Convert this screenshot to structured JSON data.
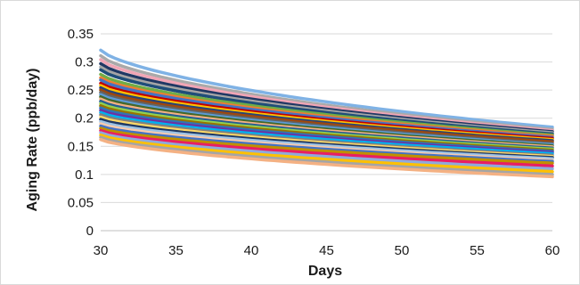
{
  "chart_data": {
    "type": "line",
    "title": "",
    "xlabel": "Days",
    "ylabel": "Aging Rate (ppb/day)",
    "xlim": [
      30,
      60
    ],
    "ylim": [
      0,
      0.35
    ],
    "x_ticks": [
      "30",
      "35",
      "40",
      "45",
      "50",
      "55",
      "60"
    ],
    "y_ticks": [
      "0",
      "0.05",
      "0.1",
      "0.15",
      "0.2",
      "0.25",
      "0.3",
      "0.35"
    ],
    "grid": "horizontal",
    "legend": "none",
    "x": [
      30,
      60
    ],
    "series": [
      {
        "color": "#7fb2e5",
        "values": [
          0.321,
          0.184
        ]
      },
      {
        "color": "#a9a9a9",
        "values": [
          0.311,
          0.18
        ]
      },
      {
        "color": "#f0a5b5",
        "values": [
          0.304,
          0.178
        ]
      },
      {
        "color": "#203864",
        "values": [
          0.297,
          0.176
        ]
      },
      {
        "color": "#a5a5a5",
        "values": [
          0.291,
          0.174
        ]
      },
      {
        "color": "#1f4e79",
        "values": [
          0.286,
          0.172
        ]
      },
      {
        "color": "#70ad47",
        "values": [
          0.278,
          0.17
        ]
      },
      {
        "color": "#ed7d31",
        "values": [
          0.272,
          0.168
        ]
      },
      {
        "color": "#4472c4",
        "values": [
          0.268,
          0.166
        ]
      },
      {
        "color": "#c00000",
        "values": [
          0.262,
          0.164
        ]
      },
      {
        "color": "#ffc000",
        "values": [
          0.258,
          0.162
        ]
      },
      {
        "color": "#264478",
        "values": [
          0.254,
          0.16
        ]
      },
      {
        "color": "#9e480e",
        "values": [
          0.25,
          0.158
        ]
      },
      {
        "color": "#636363",
        "values": [
          0.246,
          0.155
        ]
      },
      {
        "color": "#5b9bd5",
        "values": [
          0.242,
          0.153
        ]
      },
      {
        "color": "#43682b",
        "values": [
          0.238,
          0.151
        ]
      },
      {
        "color": "#f4b183",
        "values": [
          0.234,
          0.149
        ]
      },
      {
        "color": "#255e91",
        "values": [
          0.23,
          0.147
        ]
      },
      {
        "color": "#92d050",
        "values": [
          0.226,
          0.145
        ]
      },
      {
        "color": "#997300",
        "values": [
          0.222,
          0.143
        ]
      },
      {
        "color": "#2e75b6",
        "values": [
          0.218,
          0.141
        ]
      },
      {
        "color": "#7030a0",
        "values": [
          0.214,
          0.139
        ]
      },
      {
        "color": "#00b0f0",
        "values": [
          0.21,
          0.137
        ]
      },
      {
        "color": "#808080",
        "values": [
          0.206,
          0.134
        ]
      },
      {
        "color": "#ffd966",
        "values": [
          0.202,
          0.132
        ]
      },
      {
        "color": "#1f3864",
        "values": [
          0.198,
          0.13
        ]
      },
      {
        "color": "#9dc3e6",
        "values": [
          0.194,
          0.128
        ]
      },
      {
        "color": "#f8cbad",
        "values": [
          0.19,
          0.125
        ]
      },
      {
        "color": "#4472c4",
        "values": [
          0.186,
          0.123
        ]
      },
      {
        "color": "#bf9000",
        "values": [
          0.182,
          0.12
        ]
      },
      {
        "color": "#e91e63",
        "values": [
          0.178,
          0.115
        ]
      },
      {
        "color": "#8faadc",
        "values": [
          0.174,
          0.11
        ]
      },
      {
        "color": "#ffc000",
        "values": [
          0.17,
          0.105
        ]
      },
      {
        "color": "#a5a5a5",
        "values": [
          0.166,
          0.1
        ]
      },
      {
        "color": "#f4b183",
        "values": [
          0.162,
          0.096
        ]
      }
    ]
  }
}
